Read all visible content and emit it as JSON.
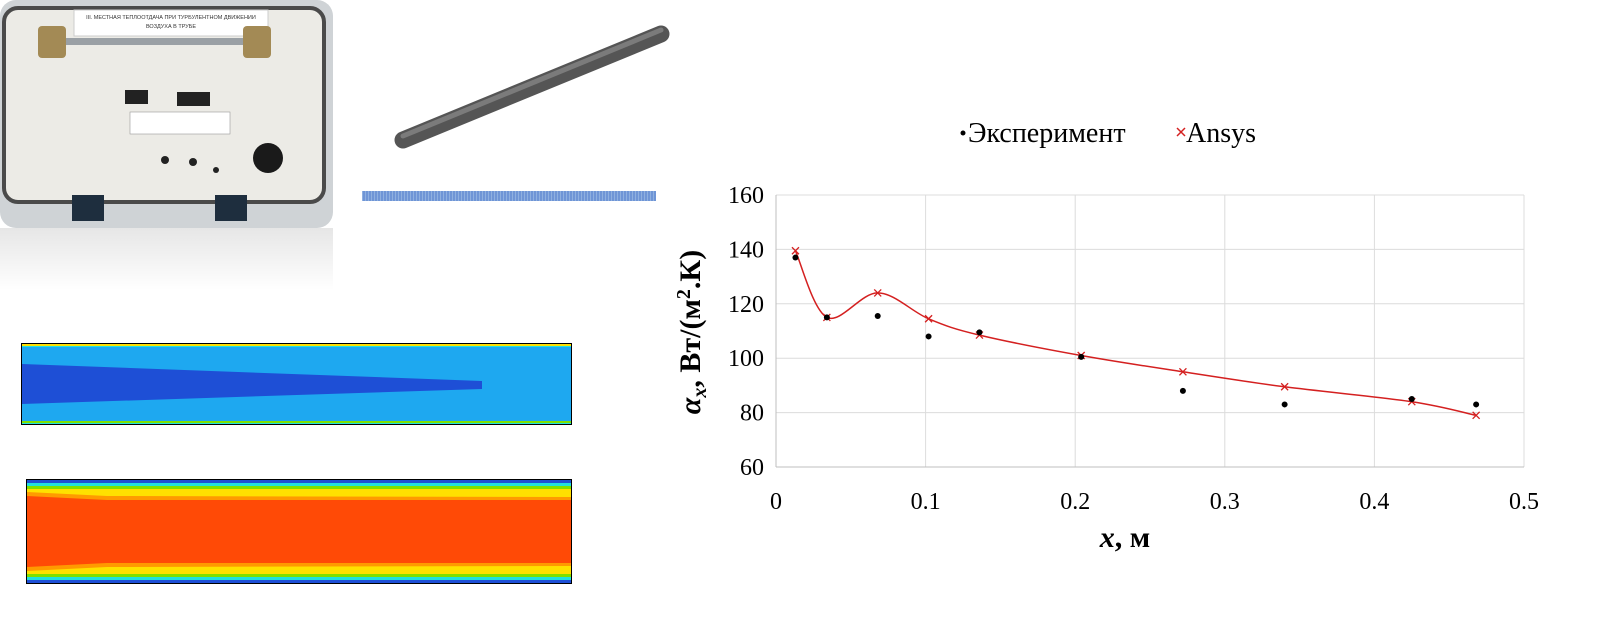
{
  "photo": {
    "caption_line1": "ІІІ. МЕСТНАЯ ТЕПЛООТДАЧА ПРИ ТУРБУЛЕНТНОМ ДВИЖЕНИИ",
    "caption_line2": "ВОЗДУХА В ТРУБЕ"
  },
  "colors": {
    "ansys_line": "#d42020",
    "experiment_marker": "#000000",
    "contour_dark_blue": "#1e4fd6",
    "contour_light_blue": "#1ea8f0",
    "contour_orange": "#ff4a06"
  },
  "chart_data": {
    "type": "scatter",
    "legend": [
      "Эксперимент",
      "Ansys"
    ],
    "xlabel_var": "x",
    "xlabel_unit": ", м",
    "ylabel_var": "α",
    "ylabel_sub": "x",
    "ylabel_unit_pre": ", Вт/(м",
    "ylabel_unit_sup": "2",
    "ylabel_unit_post": ".К)",
    "xlim": [
      0,
      0.5
    ],
    "ylim": [
      60,
      160
    ],
    "x_ticks": [
      "0",
      "0.1",
      "0.2",
      "0.3",
      "0.4",
      "0.5"
    ],
    "y_ticks": [
      "60",
      "80",
      "100",
      "120",
      "140",
      "160"
    ],
    "series": [
      {
        "name": "Эксперимент",
        "marker": "dot",
        "x": [
          0.013,
          0.034,
          0.068,
          0.102,
          0.136,
          0.204,
          0.272,
          0.34,
          0.425,
          0.468
        ],
        "y": [
          137,
          115,
          115.5,
          108,
          109.5,
          100.5,
          88,
          83,
          85,
          83
        ]
      },
      {
        "name": "Ansys",
        "marker": "x",
        "x": [
          0.013,
          0.034,
          0.068,
          0.102,
          0.136,
          0.204,
          0.272,
          0.34,
          0.425,
          0.468
        ],
        "y": [
          139.5,
          115,
          124,
          114.5,
          108.5,
          101,
          95,
          89.5,
          84,
          79
        ]
      }
    ]
  }
}
